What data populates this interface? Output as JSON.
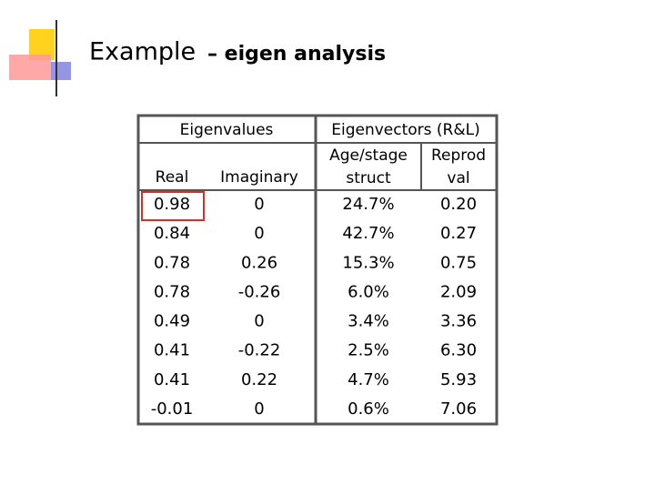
{
  "title": {
    "main": "Example",
    "sub": "– eigen analysis"
  },
  "table": {
    "group_headers": [
      "Eigenvalues",
      "Eigenvectors (R&L)"
    ],
    "headers": [
      "Real",
      "Imaginary",
      "Age/stage struct",
      "Reprod val"
    ],
    "rows": [
      [
        "0.98",
        "0",
        "24.7%",
        "0.20"
      ],
      [
        "0.84",
        "0",
        "42.7%",
        "0.27"
      ],
      [
        "0.78",
        "0.26",
        "15.3%",
        "0.75"
      ],
      [
        "0.78",
        "-0.26",
        "6.0%",
        "2.09"
      ],
      [
        "0.49",
        "0",
        "3.4%",
        "3.36"
      ],
      [
        "0.41",
        "-0.22",
        "2.5%",
        "6.30"
      ],
      [
        "0.41",
        "0.22",
        "4.7%",
        "5.93"
      ],
      [
        "-0.01",
        "0",
        "0.6%",
        "7.06"
      ]
    ]
  }
}
